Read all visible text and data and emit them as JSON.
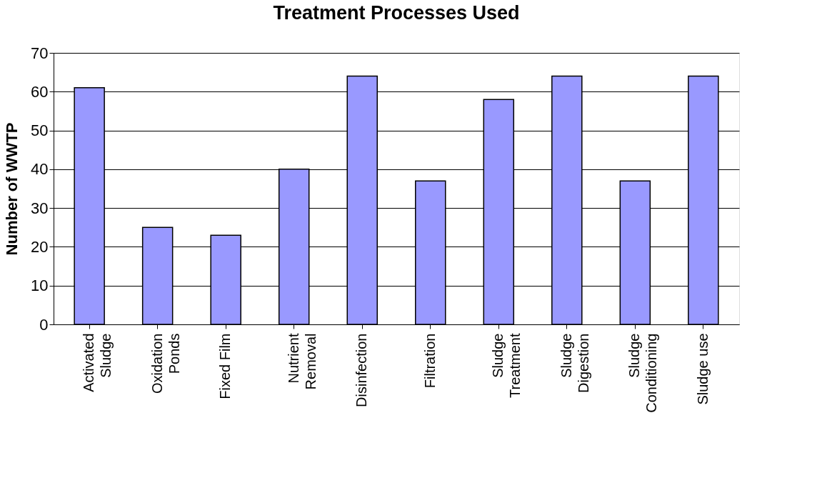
{
  "chart_data": {
    "type": "bar",
    "title": "Treatment Processes Used",
    "ylabel": "Number of WWTP",
    "categories": [
      "Activated\nSludge",
      "Oxidation\nPonds",
      "Fixed Film",
      "Nutrient\nRemoval",
      "Disinfection",
      "Filtration",
      "Sludge\nTreatment",
      "Sludge\nDigestion",
      "Sludge\nConditioning",
      "Sludge use"
    ],
    "values": [
      61,
      25,
      23,
      40,
      64,
      37,
      58,
      64,
      37,
      64
    ],
    "color": "#9999ff",
    "ylim": [
      0,
      70
    ],
    "yticks": [
      0,
      10,
      20,
      30,
      40,
      50,
      60,
      70
    ],
    "grid": "y"
  }
}
